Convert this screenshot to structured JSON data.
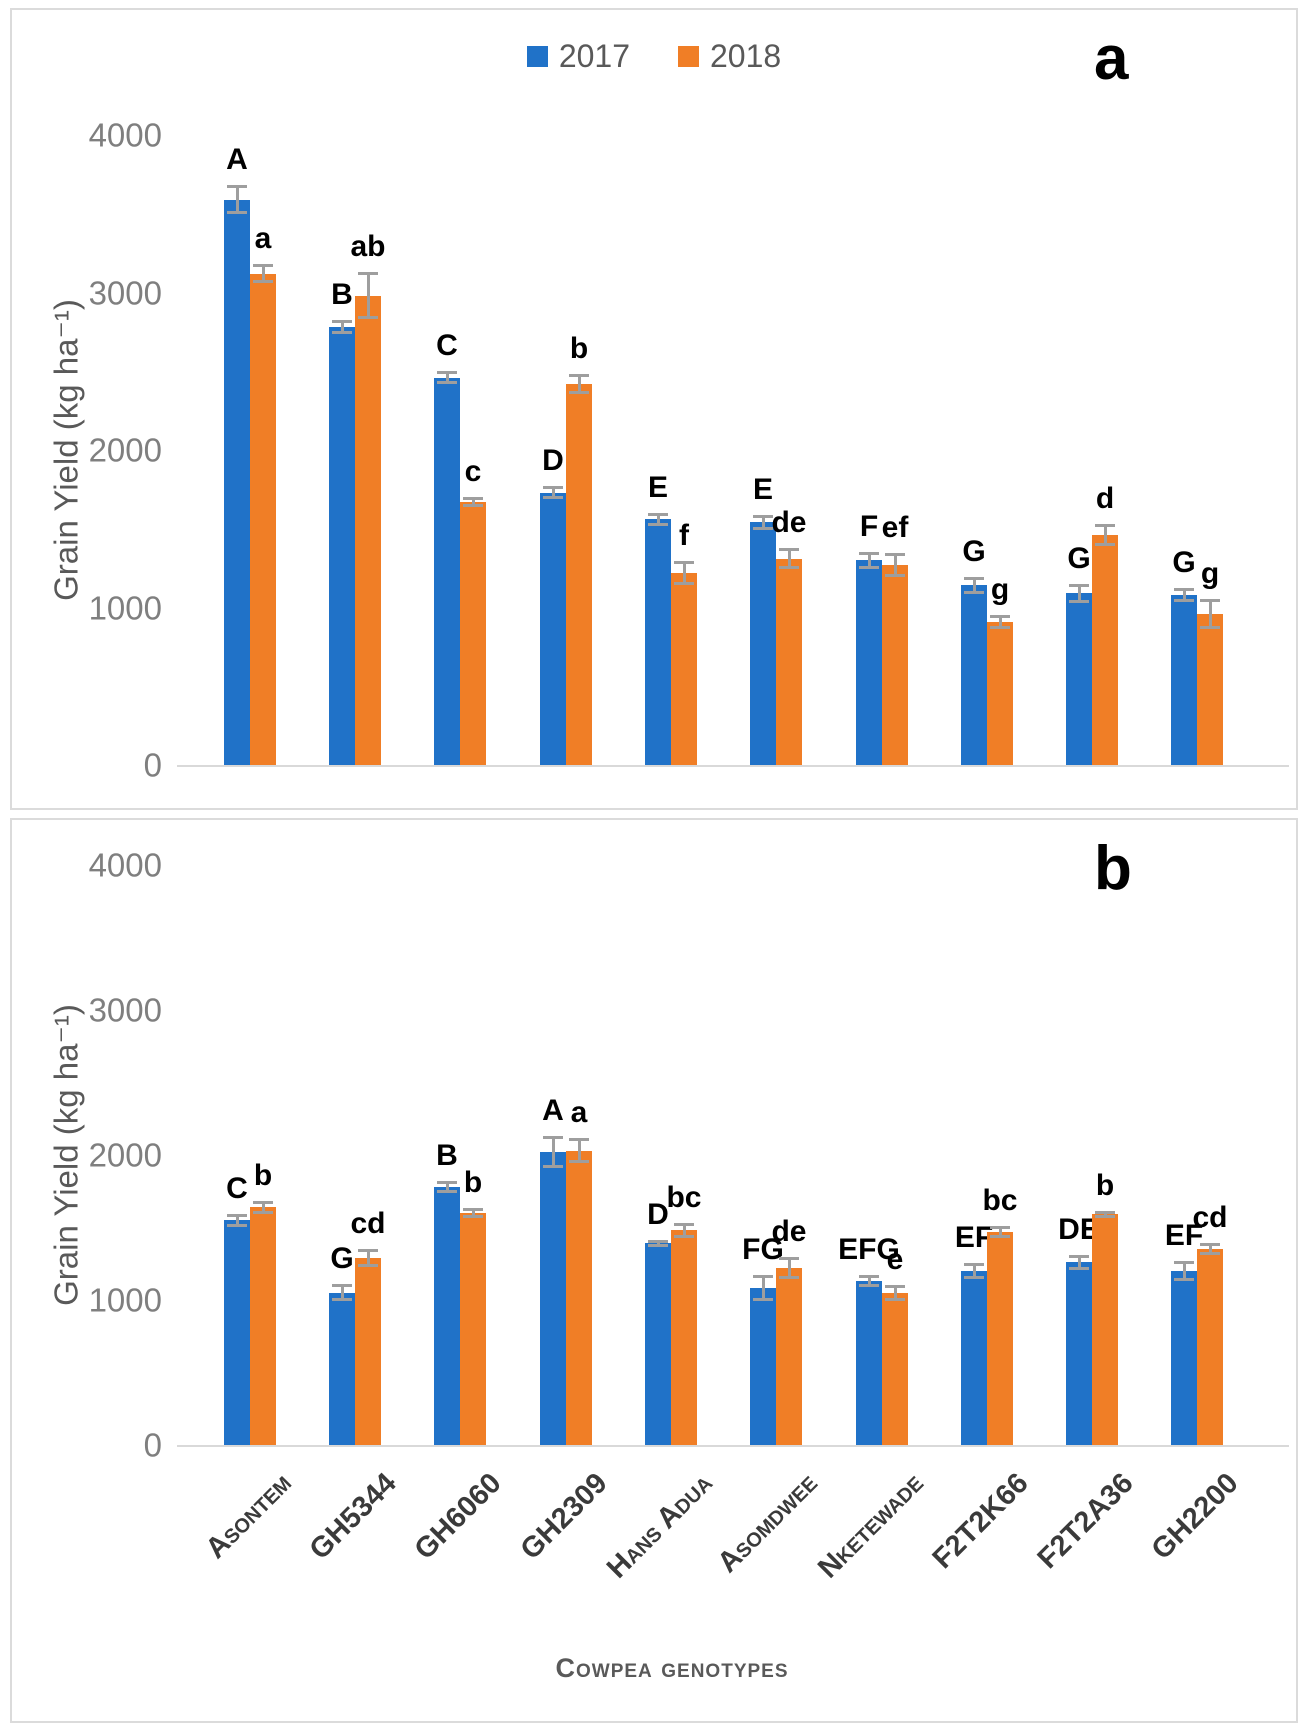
{
  "figure": {
    "panels": [
      "a",
      "b"
    ],
    "legend_items": [
      {
        "label": "2017",
        "color": "#2072C8"
      },
      {
        "label": "2018",
        "color": "#F07E26"
      }
    ],
    "error_bar_color": "#9E9E9E"
  },
  "chart_data": [
    {
      "type": "bar",
      "panel_label": "a",
      "title": "",
      "ylabel": "Grain Yield (kg ha⁻¹)",
      "xlabel": "",
      "ylim": [
        0,
        4000
      ],
      "yticks": [
        4000,
        3000,
        2000,
        1000,
        0
      ],
      "grid": false,
      "legend_position": "top-center",
      "categories": [
        "Asontem",
        "GH5344",
        "GH6060",
        "GH2309",
        "Hans Adua",
        "Asomdwee",
        "Nketewade",
        "F2T2K66",
        "F2T2A36",
        "GH2200"
      ],
      "series": [
        {
          "name": "2017",
          "color": "#2072C8",
          "values": [
            3590,
            2780,
            2460,
            1730,
            1560,
            1540,
            1300,
            1140,
            1090,
            1080
          ],
          "errors": [
            90,
            45,
            40,
            40,
            40,
            50,
            55,
            55,
            60,
            45
          ],
          "sig_labels": [
            "A",
            "B",
            "C",
            "D",
            "E",
            "E",
            "F",
            "G",
            "G",
            "G"
          ]
        },
        {
          "name": "2018",
          "color": "#F07E26",
          "values": [
            3120,
            2980,
            1670,
            2420,
            1220,
            1310,
            1270,
            910,
            1460,
            960
          ],
          "errors": [
            60,
            150,
            30,
            65,
            75,
            65,
            75,
            45,
            70,
            95
          ],
          "sig_labels": [
            "a",
            "ab",
            "c",
            "b",
            "f",
            "de",
            "ef",
            "g",
            "d",
            "g"
          ]
        }
      ]
    },
    {
      "type": "bar",
      "panel_label": "b",
      "title": "",
      "ylabel": "Grain Yield (kg ha⁻¹)",
      "xlabel": "Cowpea genotypes",
      "ylim": [
        0,
        4000
      ],
      "yticks": [
        4000,
        3000,
        2000,
        1000,
        0
      ],
      "grid": false,
      "legend_position": "none",
      "categories": [
        "Asontem",
        "GH5344",
        "GH6060",
        "GH2309",
        "Hans Adua",
        "Asomdwee",
        "Nketewade",
        "F2T2K66",
        "F2T2A36",
        "GH2200"
      ],
      "series": [
        {
          "name": "2017",
          "color": "#2072C8",
          "values": [
            1550,
            1050,
            1780,
            2020,
            1390,
            1080,
            1130,
            1200,
            1260,
            1200
          ],
          "errors": [
            45,
            60,
            40,
            110,
            25,
            90,
            40,
            55,
            50,
            70
          ],
          "sig_labels": [
            "C",
            "G",
            "B",
            "A",
            "D",
            "FG",
            "EFG",
            "EF",
            "DE",
            "EF"
          ]
        },
        {
          "name": "2018",
          "color": "#F07E26",
          "values": [
            1640,
            1290,
            1600,
            2030,
            1480,
            1220,
            1050,
            1470,
            1590,
            1350
          ],
          "errors": [
            45,
            60,
            35,
            85,
            50,
            75,
            55,
            40,
            25,
            40
          ],
          "sig_labels": [
            "b",
            "cd",
            "b",
            "a",
            "bc",
            "de",
            "e",
            "bc",
            "b",
            "cd"
          ]
        }
      ]
    }
  ]
}
